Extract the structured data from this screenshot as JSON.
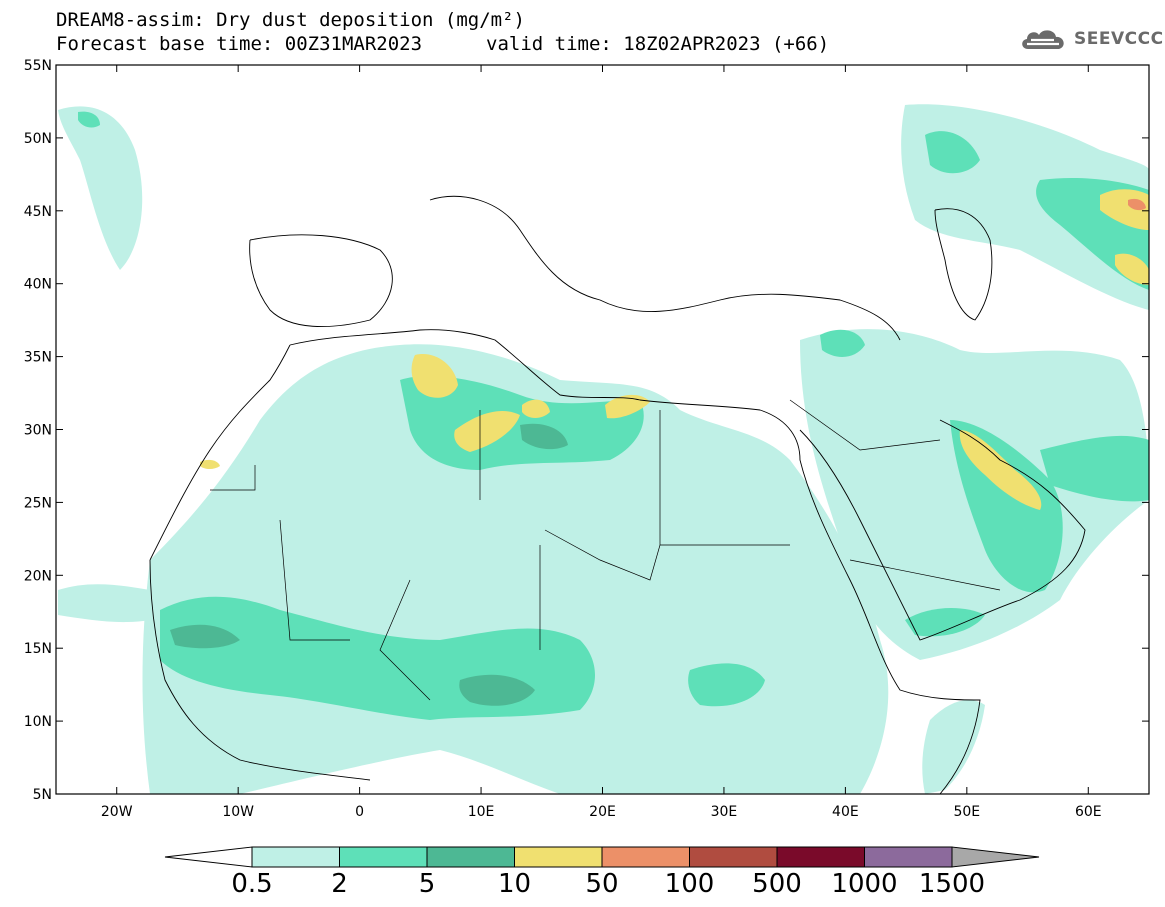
{
  "title": {
    "line1": "DREAM8-assim: Dry dust deposition (mg/m²)",
    "base_time": "Forecast base time: 00Z31MAR2023",
    "valid_time": "valid time: 18Z02APR2023 (+66)"
  },
  "logo": {
    "text": "SEEVCCC",
    "icon": "cloud-logo-icon"
  },
  "chart_data": {
    "type": "heatmap",
    "title": "DREAM8-assim: Dry dust deposition (mg/m²)",
    "map_extent": {
      "lon_min": -25,
      "lon_max": 65,
      "lat_min": 5,
      "lat_max": 55
    },
    "lon_ticks": [
      -20,
      -10,
      0,
      10,
      20,
      30,
      40,
      50,
      60
    ],
    "lon_tick_labels": [
      "20W",
      "10W",
      "0",
      "10E",
      "20E",
      "30E",
      "40E",
      "50E",
      "60E"
    ],
    "lat_ticks": [
      5,
      10,
      15,
      20,
      25,
      30,
      35,
      40,
      45,
      50,
      55
    ],
    "lat_tick_labels": [
      "5N",
      "10N",
      "15N",
      "20N",
      "25N",
      "30N",
      "35N",
      "40N",
      "45N",
      "50N",
      "55N"
    ],
    "colorbar": {
      "levels": [
        0.5,
        2,
        5,
        10,
        50,
        100,
        500,
        1000,
        1500
      ],
      "labels": [
        "0.5",
        "2",
        "5",
        "10",
        "50",
        "100",
        "500",
        "1000",
        "1500"
      ],
      "colors": [
        "#bff0e6",
        "#5ee0b8",
        "#4db894",
        "#f0e070",
        "#ec9068",
        "#b04c40",
        "#7a0a2a",
        "#8c6a9c"
      ],
      "under_color": "#ffffff",
      "over_color": "#a8a8a8"
    }
  }
}
